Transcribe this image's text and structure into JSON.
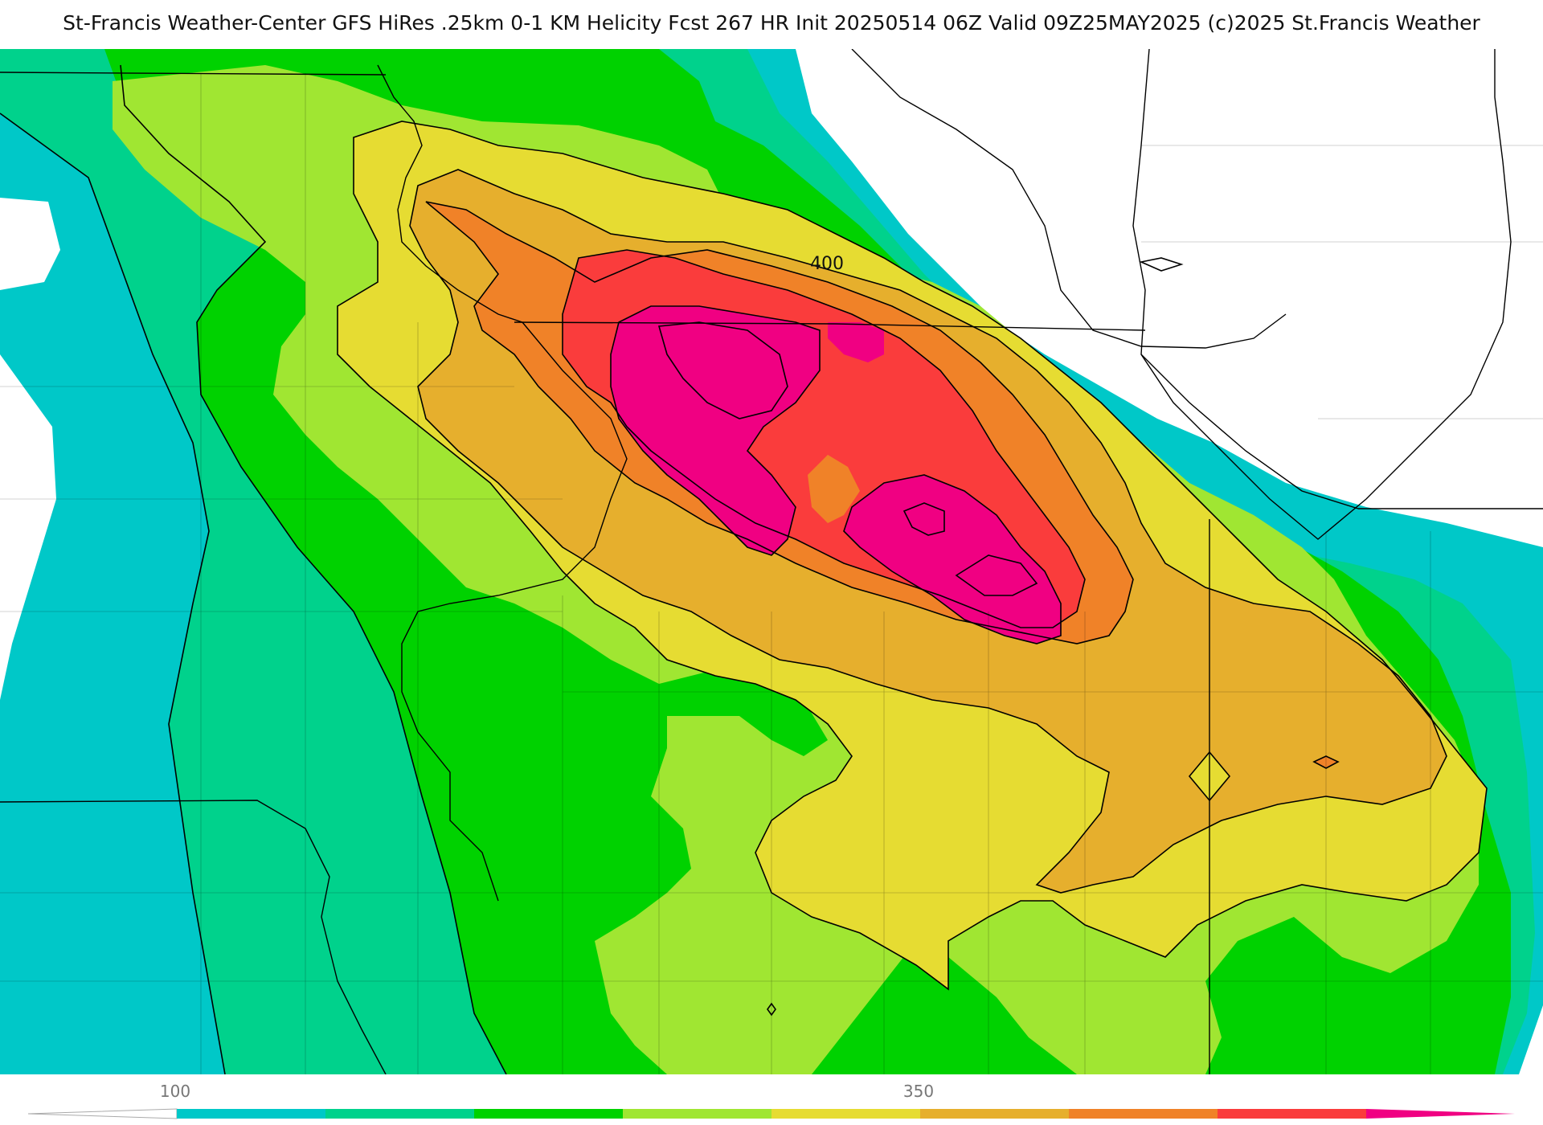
{
  "header": {
    "title": "St-Francis Weather-Center GFS HiRes .25km 0-1 KM Helicity Fcst 267 HR Init 20250514 06Z  Valid 09Z25MAY2025    (c)2025 St.Francis Weather"
  },
  "map": {
    "contour_label": "400",
    "fill_colors": {
      "background": "#ffffff",
      "c100": "#00c8c8",
      "c150": "#00d28c",
      "c200": "#00d200",
      "c250": "#a0e632",
      "c300": "#e6dc32",
      "c350": "#e6af2d",
      "c400": "#f08228",
      "c450": "#fa3c3c",
      "c500": "#f00082"
    },
    "line_color": "#000000"
  },
  "legend": {
    "tick_labels": [
      {
        "label": "100",
        "value": 100
      },
      {
        "label": "350",
        "value": 350
      }
    ],
    "bins": [
      {
        "value": 100,
        "color": "#00c8c8"
      },
      {
        "value": 150,
        "color": "#00d28c"
      },
      {
        "value": 200,
        "color": "#00d200"
      },
      {
        "value": 250,
        "color": "#a0e632"
      },
      {
        "value": 300,
        "color": "#e6dc32"
      },
      {
        "value": 350,
        "color": "#e6af2d"
      },
      {
        "value": 400,
        "color": "#f08228"
      },
      {
        "value": 450,
        "color": "#fa3c3c"
      },
      {
        "value": 500,
        "color": "#f00082"
      }
    ],
    "under_color": "#ffffff",
    "over_color": "#f00082"
  }
}
